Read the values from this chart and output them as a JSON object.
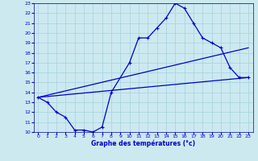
{
  "title": "Graphe des températures (°c)",
  "bg_color": "#cde9f0",
  "grid_color": "#a8d5e0",
  "line_color": "#0000cc",
  "xlim": [
    -0.5,
    23.5
  ],
  "ylim": [
    10,
    23
  ],
  "xticks": [
    0,
    1,
    2,
    3,
    4,
    5,
    6,
    7,
    8,
    9,
    10,
    11,
    12,
    13,
    14,
    15,
    16,
    17,
    18,
    19,
    20,
    21,
    22,
    23
  ],
  "yticks": [
    10,
    11,
    12,
    13,
    14,
    15,
    16,
    17,
    18,
    19,
    20,
    21,
    22,
    23
  ],
  "series_main": {
    "x": [
      0,
      1,
      2,
      3,
      4,
      5,
      6,
      7,
      8,
      10,
      11,
      12,
      13,
      14,
      15,
      16,
      17,
      18,
      19,
      20,
      21,
      22,
      23
    ],
    "y": [
      13.5,
      13.0,
      12.0,
      11.5,
      10.2,
      10.2,
      10.0,
      10.5,
      14.0,
      17.0,
      19.5,
      19.5,
      20.5,
      21.5,
      23.0,
      22.5,
      21.0,
      19.5,
      19.0,
      18.5,
      16.5,
      15.5,
      15.5
    ]
  },
  "series_line1": {
    "x": [
      0,
      23
    ],
    "y": [
      13.5,
      18.5
    ]
  },
  "series_line2": {
    "x": [
      0,
      23
    ],
    "y": [
      13.5,
      15.5
    ]
  }
}
